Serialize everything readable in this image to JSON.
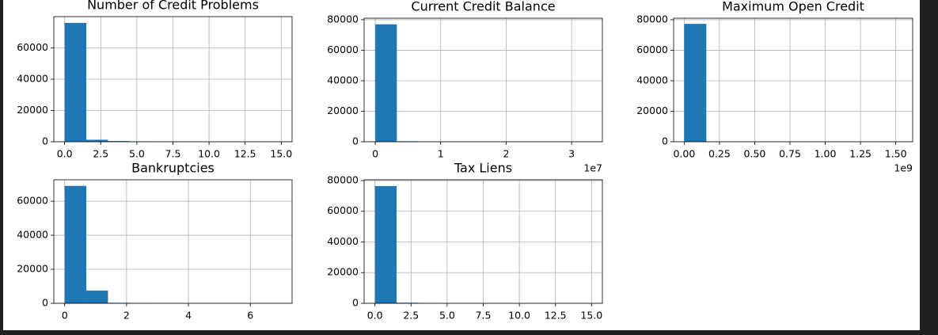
{
  "chart_data": [
    {
      "type": "histogram",
      "title": "Number of Credit Problems",
      "bins": [
        0,
        1.5,
        3,
        4.5,
        6,
        7.5,
        9,
        10.5,
        12,
        13.5,
        15
      ],
      "values": [
        76000,
        1300,
        450,
        150,
        60,
        25,
        10,
        5,
        2,
        1
      ],
      "color": "#1f77b4",
      "xlim": [
        -0.75,
        15.75
      ],
      "ylim": [
        0,
        80000
      ],
      "xticks": [
        {
          "value": 0,
          "label": "0.0"
        },
        2.5,
        {
          "value": 5,
          "label": "5.0"
        },
        7.5,
        {
          "value": 10,
          "label": "10.0"
        },
        12.5,
        {
          "value": 15,
          "label": "15.0"
        }
      ],
      "yticks": [
        0,
        20000,
        40000,
        60000
      ],
      "grid": true
    },
    {
      "type": "histogram",
      "title": "Current Credit Balance",
      "x_offset_label": "1e7",
      "bins": [
        0,
        3300000,
        6600000,
        9900000,
        13200000,
        16500000,
        19800000,
        23100000,
        26400000,
        29700000,
        33000000
      ],
      "values": [
        77000,
        350,
        40,
        10,
        4,
        2,
        1,
        0,
        0,
        1
      ],
      "color": "#1f77b4",
      "xlim": [
        -1700000,
        34700000
      ],
      "ylim": [
        0,
        81000
      ],
      "xticks": [
        0,
        {
          "value": 10000000,
          "label": "1"
        },
        {
          "value": 20000000,
          "label": "2"
        },
        {
          "value": 30000000,
          "label": "3"
        }
      ],
      "yticks": [
        0,
        20000,
        40000,
        60000,
        80000
      ],
      "grid": true
    },
    {
      "type": "histogram",
      "title": "Maximum Open Credit",
      "x_offset_label": "1e9",
      "bins": [
        0,
        157000000,
        314000000,
        471000000,
        628000000,
        785000000,
        942000000,
        1099000000,
        1256000000,
        1413000000,
        1570000000
      ],
      "values": [
        77300,
        20,
        5,
        2,
        1,
        0,
        0,
        0,
        0,
        1
      ],
      "color": "#1f77b4",
      "xlim": [
        -75000000,
        1620000000
      ],
      "ylim": [
        0,
        81000
      ],
      "xticks": [
        {
          "value": 0,
          "label": "0.00"
        },
        {
          "value": 250000000,
          "label": "0.25"
        },
        {
          "value": 500000000,
          "label": "0.50"
        },
        {
          "value": 750000000,
          "label": "0.75"
        },
        {
          "value": 1000000000,
          "label": "1.00"
        },
        {
          "value": 1250000000,
          "label": "1.25"
        },
        {
          "value": 1500000000,
          "label": "1.50"
        }
      ],
      "yticks": [
        0,
        20000,
        40000,
        60000,
        80000
      ],
      "grid": true
    },
    {
      "type": "histogram",
      "title": "Bankruptcies",
      "bins": [
        0,
        0.7,
        1.4,
        2.1,
        2.8,
        3.5,
        4.2,
        4.9,
        5.6,
        6.3,
        7
      ],
      "values": [
        69000,
        7500,
        300,
        80,
        20,
        10,
        3,
        1,
        0,
        1
      ],
      "color": "#1f77b4",
      "xlim": [
        -0.35,
        7.35
      ],
      "ylim": [
        0,
        72600
      ],
      "xticks": [
        0,
        2,
        4,
        6
      ],
      "yticks": [
        0,
        20000,
        40000,
        60000
      ],
      "grid": true
    },
    {
      "type": "histogram",
      "title": "Tax Liens",
      "bins": [
        0,
        1.5,
        3,
        4.5,
        6,
        7.5,
        9,
        10.5,
        12,
        13.5,
        15
      ],
      "values": [
        76400,
        400,
        80,
        30,
        10,
        5,
        2,
        1,
        1,
        1
      ],
      "color": "#1f77b4",
      "xlim": [
        -0.75,
        15.75
      ],
      "ylim": [
        0,
        80500
      ],
      "xticks": [
        {
          "value": 0,
          "label": "0.0"
        },
        2.5,
        {
          "value": 5,
          "label": "5.0"
        },
        7.5,
        {
          "value": 10,
          "label": "10.0"
        },
        12.5,
        {
          "value": 15,
          "label": "15.0"
        }
      ],
      "yticks": [
        0,
        20000,
        40000,
        60000,
        80000
      ],
      "grid": true
    }
  ]
}
